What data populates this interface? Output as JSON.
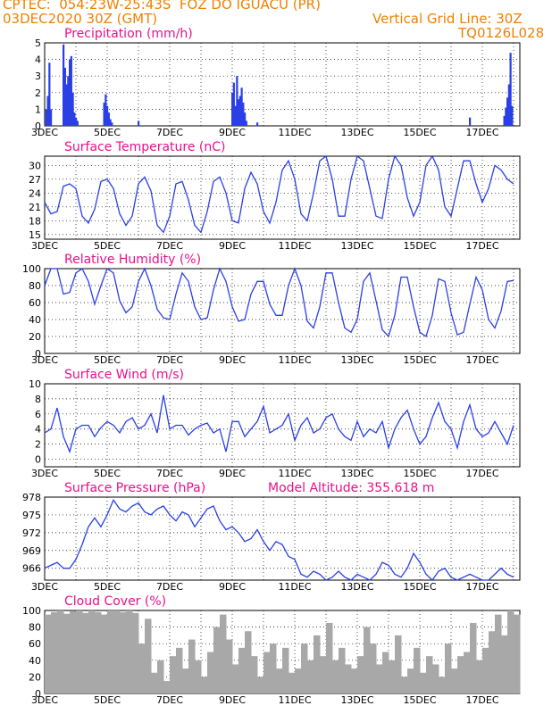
{
  "header": {
    "line1": "CPTEC:  054:23W-25:43S  FOZ DO IGUACU (PR)",
    "line2_left": "03DEC2020 30Z (GMT)",
    "line2_right": "Vertical Grid Line: 30Z",
    "line3_right": "TQ0126L028"
  },
  "colors": {
    "accent": "#f08000",
    "title": "#e8108a",
    "series": "#2a3fe6",
    "cloud": "#a8a8a8"
  },
  "x_tick_labels": [
    "3DEC",
    "5DEC",
    "7DEC",
    "9DEC",
    "11DEC",
    "13DEC",
    "15DEC",
    "17DEC"
  ],
  "panels": [
    {
      "id": "precip",
      "title": "Precipitation (mm/h)",
      "yticks": [
        0,
        1,
        2,
        3,
        4,
        5
      ],
      "ymin": 0,
      "ymax": 5
    },
    {
      "id": "temp",
      "title": "Surface Temperature (nC)",
      "yticks": [
        15,
        18,
        21,
        24,
        27,
        30
      ],
      "ymin": 14,
      "ymax": 32
    },
    {
      "id": "rh",
      "title": "Relative Humidity (%)",
      "yticks": [
        0,
        20,
        40,
        60,
        80,
        100
      ],
      "ymin": 0,
      "ymax": 100
    },
    {
      "id": "wind",
      "title": "Surface Wind (m/s)",
      "yticks": [
        0,
        2,
        4,
        6,
        8,
        10
      ],
      "ymin": -1,
      "ymax": 10
    },
    {
      "id": "pres",
      "title": "Surface Pressure (hPa)",
      "extra": "Model Altitude: 355.618 m",
      "yticks": [
        966,
        969,
        972,
        975,
        978
      ],
      "ymin": 964,
      "ymax": 978
    },
    {
      "id": "cloud",
      "title": "Cloud Cover (%)",
      "yticks": [
        0,
        20,
        40,
        60,
        80,
        100
      ],
      "ymin": 0,
      "ymax": 100
    }
  ],
  "chart_data": [
    {
      "type": "bar",
      "title": "Precipitation (mm/h)",
      "xlabel": "",
      "ylabel": "",
      "ylim": [
        0,
        5
      ],
      "x": [
        0.05,
        0.1,
        0.15,
        0.2,
        0.6,
        0.65,
        0.7,
        0.75,
        0.8,
        0.85,
        0.9,
        0.95,
        1.0,
        1.05,
        1.9,
        1.95,
        2.0,
        2.05,
        2.1,
        2.15,
        3.0,
        6.0,
        6.05,
        6.1,
        6.15,
        6.2,
        6.25,
        6.3,
        6.35,
        6.4,
        6.45,
        6.8,
        13.6,
        14.7,
        14.75,
        14.8,
        14.85,
        14.9,
        14.95
      ],
      "values": [
        1.0,
        1.8,
        3.8,
        1.0,
        4.9,
        3.5,
        2.5,
        3.0,
        4.0,
        4.2,
        2.0,
        0.8,
        0.5,
        0.3,
        1.4,
        1.9,
        1.2,
        0.8,
        0.4,
        0.2,
        0.3,
        2.0,
        2.6,
        1.2,
        3.0,
        1.6,
        1.8,
        2.3,
        1.4,
        0.8,
        0.3,
        0.2,
        0.5,
        0.6,
        1.1,
        1.7,
        2.5,
        4.4,
        1.2
      ]
    },
    {
      "type": "line",
      "title": "Surface Temperature (nC)",
      "ylim": [
        14,
        32
      ],
      "x": [
        0,
        0.2,
        0.4,
        0.6,
        0.8,
        1.0,
        1.2,
        1.4,
        1.6,
        1.8,
        2.0,
        2.2,
        2.4,
        2.6,
        2.8,
        3.0,
        3.2,
        3.4,
        3.6,
        3.8,
        4.0,
        4.2,
        4.4,
        4.6,
        4.8,
        5.0,
        5.2,
        5.4,
        5.6,
        5.8,
        6.0,
        6.2,
        6.4,
        6.6,
        6.8,
        7.0,
        7.2,
        7.4,
        7.6,
        7.8,
        8.0,
        8.2,
        8.4,
        8.6,
        8.8,
        9.0,
        9.2,
        9.4,
        9.6,
        9.8,
        10.0,
        10.2,
        10.4,
        10.6,
        10.8,
        11.0,
        11.2,
        11.4,
        11.6,
        11.8,
        12.0,
        12.2,
        12.4,
        12.6,
        12.8,
        13.0,
        13.2,
        13.4,
        13.6,
        13.8,
        14.0,
        14.2,
        14.4,
        14.6,
        14.8,
        15.0
      ],
      "values": [
        22,
        19.5,
        20,
        25.5,
        26,
        25,
        19,
        17.5,
        20.5,
        26.5,
        27,
        25,
        19.5,
        17,
        19,
        26,
        27.5,
        24.5,
        17,
        15.5,
        19,
        26,
        26.5,
        22.5,
        17,
        15.5,
        20,
        26.5,
        27.5,
        24,
        18,
        17.5,
        25,
        28.5,
        26,
        20,
        17.5,
        22,
        29,
        31,
        27,
        19.5,
        18,
        24,
        31,
        32,
        27,
        19,
        19,
        27,
        32,
        31,
        25,
        19,
        18.5,
        27,
        32,
        30,
        23,
        19,
        22,
        30,
        32,
        29,
        21,
        19,
        25,
        31,
        31,
        26,
        22,
        25,
        30,
        29,
        27,
        26
      ]
    },
    {
      "type": "line",
      "title": "Relative Humidity (%)",
      "ylim": [
        0,
        100
      ],
      "x": [
        0,
        0.2,
        0.4,
        0.6,
        0.8,
        1.0,
        1.2,
        1.4,
        1.6,
        1.8,
        2.0,
        2.2,
        2.4,
        2.6,
        2.8,
        3.0,
        3.2,
        3.4,
        3.6,
        3.8,
        4.0,
        4.2,
        4.4,
        4.6,
        4.8,
        5.0,
        5.2,
        5.4,
        5.6,
        5.8,
        6.0,
        6.2,
        6.4,
        6.6,
        6.8,
        7.0,
        7.2,
        7.4,
        7.6,
        7.8,
        8.0,
        8.2,
        8.4,
        8.6,
        8.8,
        9.0,
        9.2,
        9.4,
        9.6,
        9.8,
        10.0,
        10.2,
        10.4,
        10.6,
        10.8,
        11.0,
        11.2,
        11.4,
        11.6,
        11.8,
        12.0,
        12.2,
        12.4,
        12.6,
        12.8,
        13.0,
        13.2,
        13.4,
        13.6,
        13.8,
        14.0,
        14.2,
        14.4,
        14.6,
        14.8,
        15.0
      ],
      "values": [
        80,
        100,
        100,
        70,
        72,
        95,
        100,
        85,
        58,
        80,
        100,
        95,
        62,
        48,
        55,
        85,
        100,
        80,
        52,
        42,
        40,
        70,
        95,
        85,
        55,
        40,
        42,
        75,
        100,
        85,
        55,
        38,
        40,
        70,
        85,
        85,
        58,
        45,
        45,
        80,
        100,
        80,
        38,
        30,
        55,
        95,
        95,
        60,
        30,
        25,
        40,
        85,
        95,
        62,
        28,
        20,
        45,
        90,
        90,
        55,
        25,
        20,
        45,
        88,
        85,
        48,
        22,
        25,
        58,
        90,
        75,
        40,
        30,
        50,
        85,
        86
      ]
    },
    {
      "type": "line",
      "title": "Surface Wind (m/s)",
      "ylim": [
        -1,
        10
      ],
      "x": [
        0,
        0.2,
        0.4,
        0.6,
        0.8,
        1.0,
        1.2,
        1.4,
        1.6,
        1.8,
        2.0,
        2.2,
        2.4,
        2.6,
        2.8,
        3.0,
        3.2,
        3.4,
        3.6,
        3.8,
        4.0,
        4.2,
        4.4,
        4.6,
        4.8,
        5.0,
        5.2,
        5.4,
        5.6,
        5.8,
        6.0,
        6.2,
        6.4,
        6.6,
        6.8,
        7.0,
        7.2,
        7.4,
        7.6,
        7.8,
        8.0,
        8.2,
        8.4,
        8.6,
        8.8,
        9.0,
        9.2,
        9.4,
        9.6,
        9.8,
        10.0,
        10.2,
        10.4,
        10.6,
        10.8,
        11.0,
        11.2,
        11.4,
        11.6,
        11.8,
        12.0,
        12.2,
        12.4,
        12.6,
        12.8,
        13.0,
        13.2,
        13.4,
        13.6,
        13.8,
        14.0,
        14.2,
        14.4,
        14.6,
        14.8,
        15.0
      ],
      "values": [
        3.5,
        4,
        6.8,
        3,
        1,
        4,
        4.5,
        4.5,
        3,
        4.2,
        5,
        4.5,
        3.5,
        5,
        5.5,
        4,
        4.5,
        6,
        3.5,
        8.5,
        4,
        4.5,
        4.5,
        3.2,
        4,
        4.5,
        4.8,
        3.5,
        4,
        1,
        5,
        5,
        3,
        4,
        5,
        7,
        3.5,
        4,
        4.5,
        6,
        2.5,
        4.5,
        5.5,
        3.5,
        4,
        5.5,
        6,
        4,
        3,
        2.5,
        5,
        3,
        4,
        3.5,
        5,
        1.5,
        4,
        5.5,
        6.5,
        4,
        2,
        3,
        5.5,
        7.5,
        5,
        4,
        1.5,
        5,
        7.2,
        4,
        3,
        3.5,
        5,
        3.5,
        2,
        4.5
      ]
    },
    {
      "type": "line",
      "title": "Surface Pressure (hPa)",
      "ylim": [
        964,
        978
      ],
      "x": [
        0,
        0.2,
        0.4,
        0.6,
        0.8,
        1.0,
        1.2,
        1.4,
        1.6,
        1.8,
        2.0,
        2.2,
        2.4,
        2.6,
        2.8,
        3.0,
        3.2,
        3.4,
        3.6,
        3.8,
        4.0,
        4.2,
        4.4,
        4.6,
        4.8,
        5.0,
        5.2,
        5.4,
        5.6,
        5.8,
        6.0,
        6.2,
        6.4,
        6.6,
        6.8,
        7.0,
        7.2,
        7.4,
        7.6,
        7.8,
        8.0,
        8.2,
        8.4,
        8.6,
        8.8,
        9.0,
        9.2,
        9.4,
        9.6,
        9.8,
        10.0,
        10.2,
        10.4,
        10.6,
        10.8,
        11.0,
        11.2,
        11.4,
        11.6,
        11.8,
        12.0,
        12.2,
        12.4,
        12.6,
        12.8,
        13.0,
        13.2,
        13.4,
        13.6,
        13.8,
        14.0,
        14.2,
        14.4,
        14.6,
        14.8,
        15.0
      ],
      "values": [
        966,
        966.5,
        967,
        966,
        966,
        967.5,
        970,
        973,
        974.5,
        973,
        975,
        977.5,
        976,
        975.5,
        976.5,
        977,
        975.5,
        975,
        976,
        976.5,
        975,
        974,
        975.5,
        975,
        973,
        974.5,
        976,
        976.5,
        974,
        972.5,
        973,
        972,
        970.5,
        971,
        972.5,
        970.5,
        969,
        970.5,
        970,
        968,
        967.5,
        965,
        964.5,
        965.5,
        965,
        964,
        964.5,
        965.5,
        964.5,
        964,
        965,
        964.5,
        964,
        965,
        967,
        966.5,
        965,
        964.5,
        966,
        968.5,
        967,
        965,
        964,
        965.5,
        966,
        964.5,
        964,
        964.5,
        965,
        964.5,
        964,
        964,
        965,
        966,
        965,
        964.5
      ]
    },
    {
      "type": "bar",
      "title": "Cloud Cover (%)",
      "ylim": [
        0,
        100
      ],
      "x": [
        0.0,
        0.2,
        0.4,
        0.6,
        0.8,
        1.0,
        1.2,
        1.4,
        1.6,
        1.8,
        2.0,
        2.2,
        2.4,
        2.6,
        2.8,
        3.0,
        3.2,
        3.4,
        3.6,
        3.8,
        4.0,
        4.2,
        4.4,
        4.6,
        4.8,
        5.0,
        5.2,
        5.4,
        5.6,
        5.8,
        6.0,
        6.2,
        6.4,
        6.6,
        6.8,
        7.0,
        7.2,
        7.4,
        7.6,
        7.8,
        8.0,
        8.2,
        8.4,
        8.6,
        8.8,
        9.0,
        9.2,
        9.4,
        9.6,
        9.8,
        10.0,
        10.2,
        10.4,
        10.6,
        10.8,
        11.0,
        11.2,
        11.4,
        11.6,
        11.8,
        12.0,
        12.2,
        12.4,
        12.6,
        12.8,
        13.0,
        13.2,
        13.4,
        13.6,
        13.8,
        14.0,
        14.2,
        14.4,
        14.6,
        14.8,
        15.0
      ],
      "values": [
        95,
        98,
        100,
        96,
        99,
        100,
        97,
        100,
        98,
        95,
        100,
        100,
        98,
        100,
        97,
        60,
        90,
        25,
        40,
        15,
        45,
        55,
        30,
        65,
        40,
        20,
        50,
        80,
        95,
        65,
        35,
        55,
        75,
        45,
        20,
        50,
        60,
        30,
        55,
        25,
        30,
        60,
        40,
        70,
        45,
        85,
        40,
        55,
        35,
        30,
        45,
        80,
        60,
        35,
        50,
        40,
        70,
        20,
        30,
        55,
        25,
        45,
        35,
        20,
        60,
        30,
        45,
        50,
        85,
        40,
        55,
        75,
        95,
        70,
        100,
        95
      ]
    }
  ]
}
